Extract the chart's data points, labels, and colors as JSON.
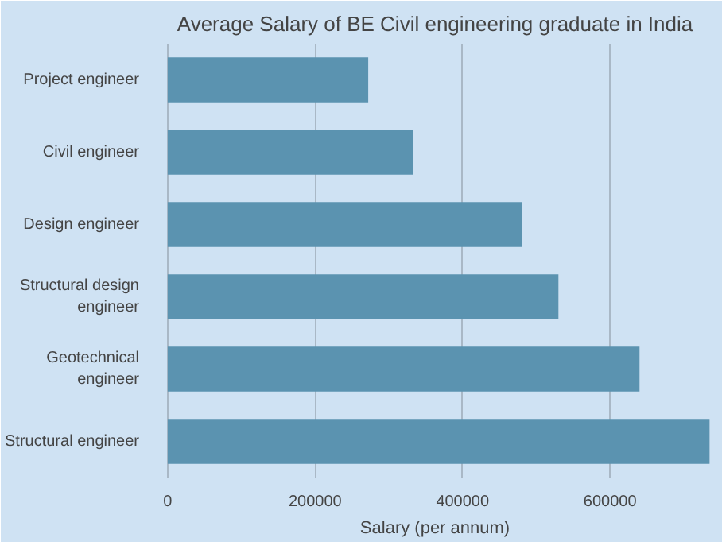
{
  "chart_data": {
    "type": "bar",
    "orientation": "horizontal",
    "title": "Average Salary of BE Civil engineering graduate in India",
    "xlabel": "Salary (per annum)",
    "categories": [
      "Project engineer",
      "Civil engineer",
      "Design engineer",
      "Structural design engineer",
      "Geotechnical engineer",
      "Structural engineer"
    ],
    "values": [
      272000,
      333000,
      481000,
      530000,
      640000,
      735000
    ],
    "color": "#5b93b0",
    "xlim": [
      -15000,
      740000
    ],
    "xticks": [
      0,
      200000,
      400000,
      600000
    ],
    "grid": "x"
  }
}
